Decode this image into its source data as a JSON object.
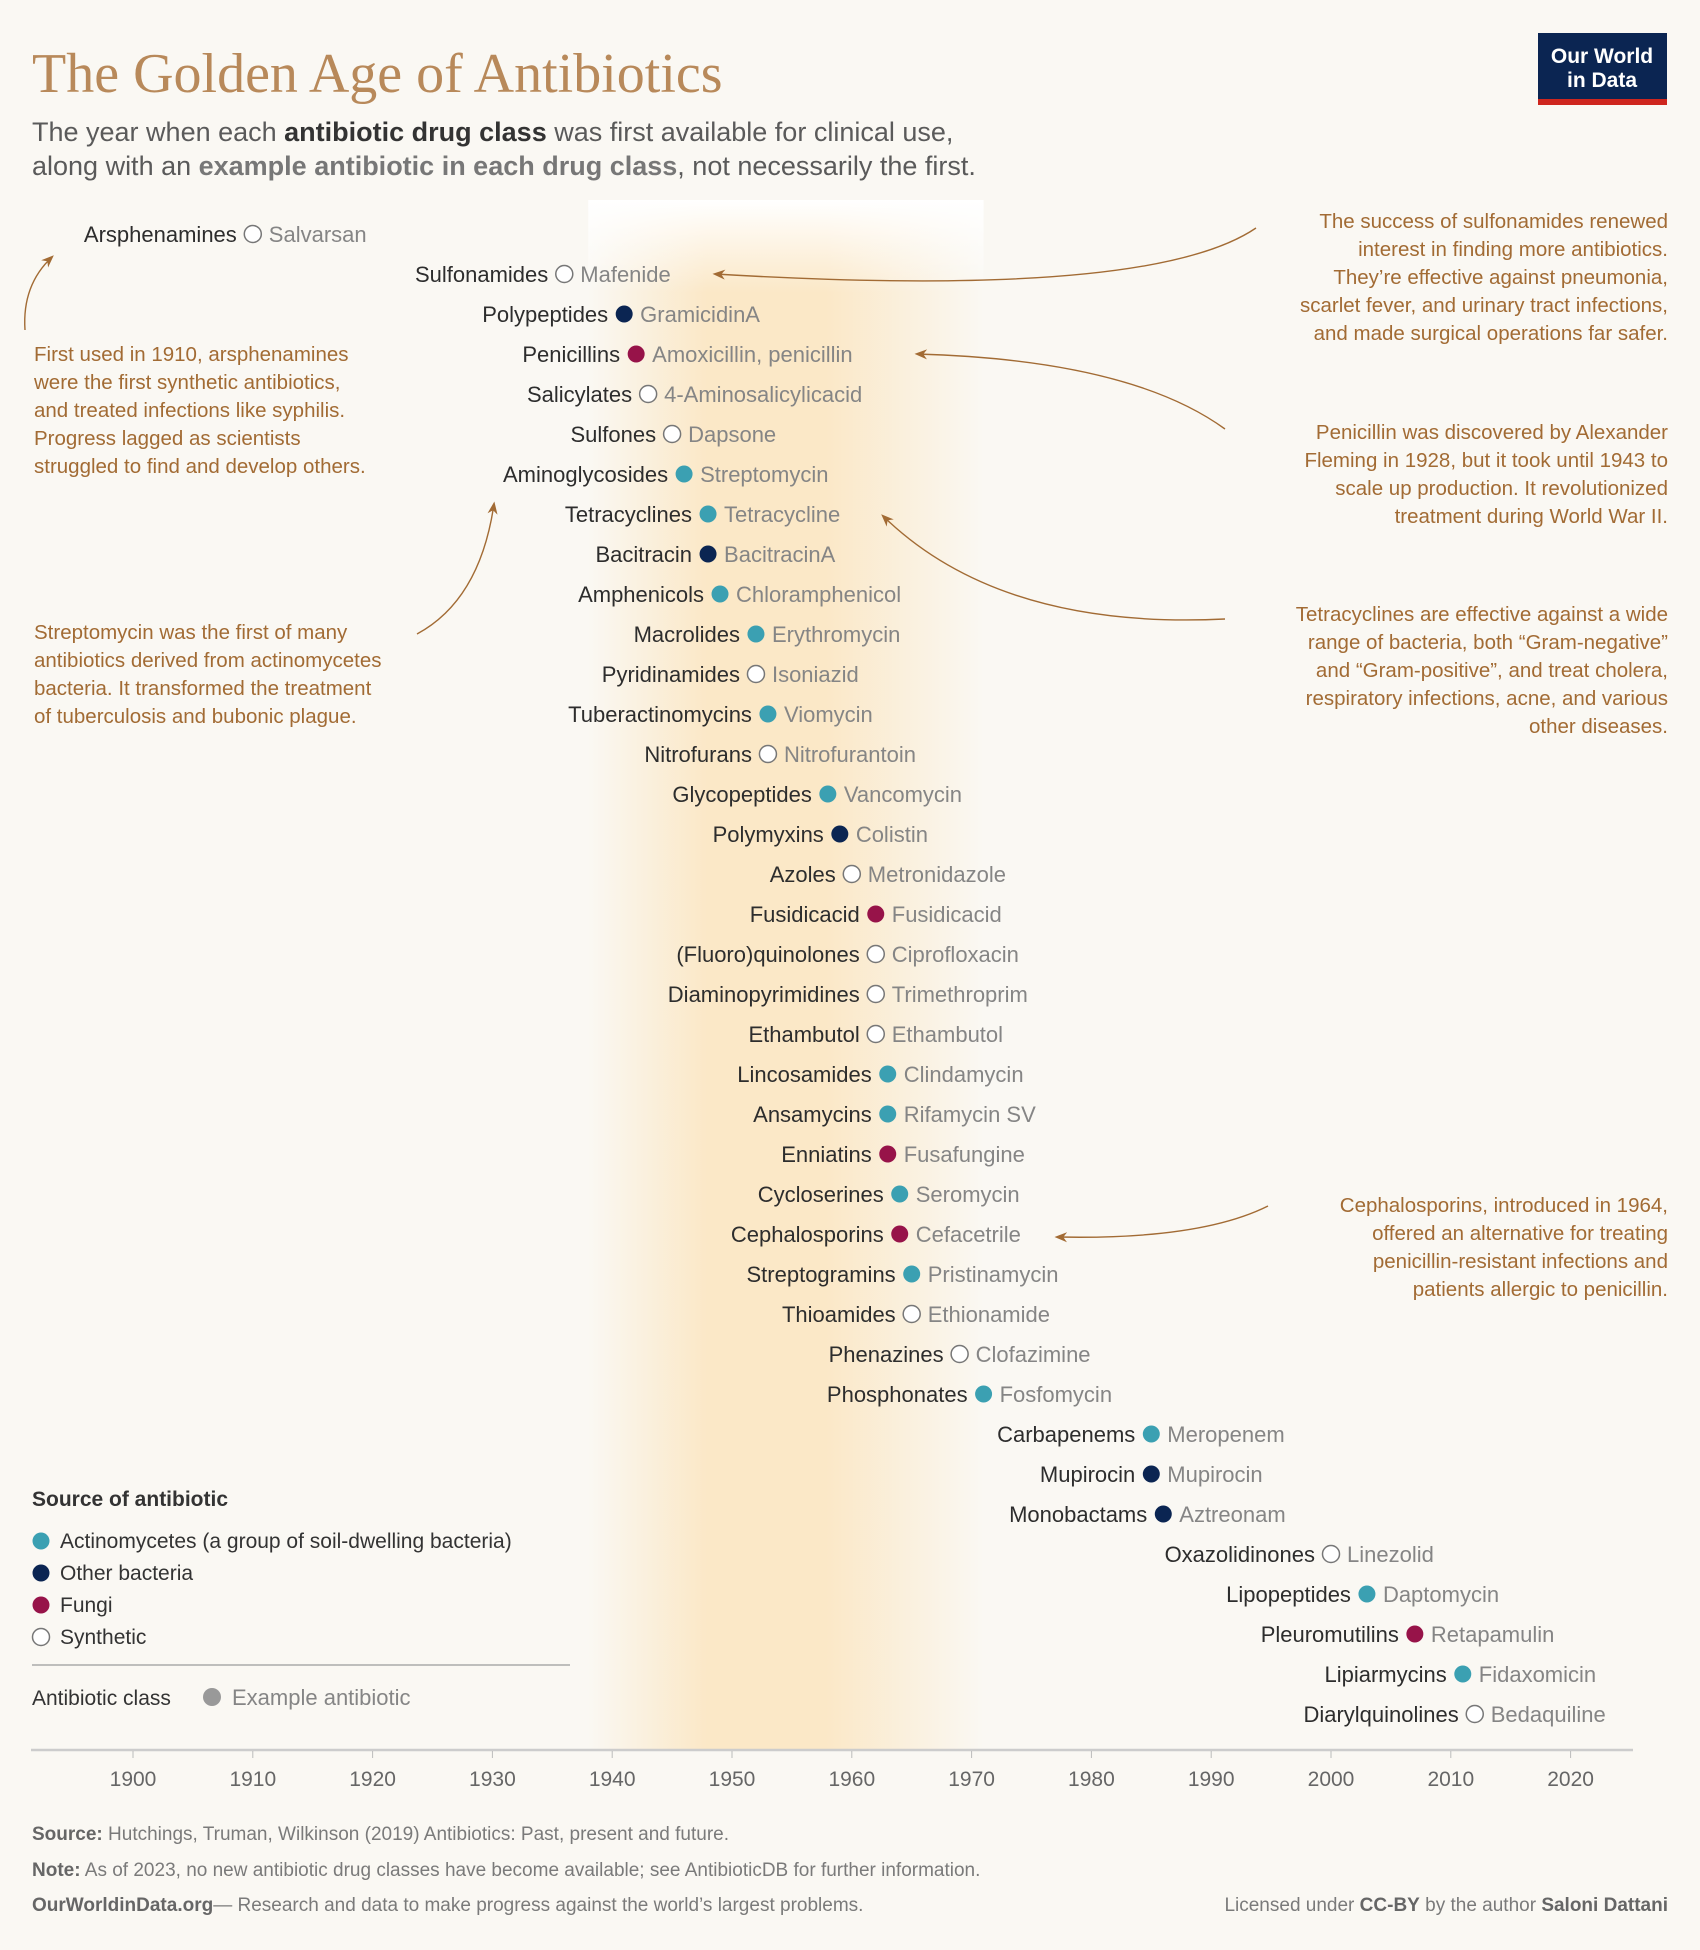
{
  "header": {
    "title": "The Golden Age of Antibiotics",
    "subtitle_line1": [
      "The year when each ",
      "antibiotic drug class",
      " was first available for clinical use,"
    ],
    "subtitle_line2": [
      "along with an ",
      "example antibiotic in each drug class",
      ", not necessarily the first."
    ],
    "logo_line1": "Our World",
    "logo_line2": "in Data"
  },
  "colors": {
    "actinomycetes": "#3ba0b2",
    "other_bacteria": "#0b2552",
    "fungi": "#971349",
    "synthetic": "#ffffff",
    "title": "#b8895a",
    "annotation": "#a26b34",
    "highlight_band": "#fbe6c2"
  },
  "chart_data": {
    "type": "scatter",
    "xlabel": "",
    "ylabel": "",
    "xlim": [
      1892,
      2026
    ],
    "x_ticks": [
      1900,
      1910,
      1920,
      1930,
      1940,
      1950,
      1960,
      1970,
      1980,
      1990,
      2000,
      2010,
      2020
    ],
    "highlight_range": [
      1938,
      1971
    ],
    "grid": false,
    "points": [
      {
        "class": "Arsphenamines",
        "example": "Salvarsan",
        "year": 1910,
        "source": "synthetic"
      },
      {
        "class": "Sulfonamides",
        "example": "Mafenide",
        "year": 1936,
        "source": "synthetic"
      },
      {
        "class": "Polypeptides",
        "example": "GramicidinA",
        "year": 1941,
        "source": "other_bacteria"
      },
      {
        "class": "Penicillins",
        "example": "Amoxicillin, penicillin",
        "year": 1942,
        "source": "fungi"
      },
      {
        "class": "Salicylates",
        "example": "4-Aminosalicylicacid",
        "year": 1943,
        "source": "synthetic"
      },
      {
        "class": "Sulfones",
        "example": "Dapsone",
        "year": 1945,
        "source": "synthetic"
      },
      {
        "class": "Aminoglycosides",
        "example": "Streptomycin",
        "year": 1946,
        "source": "actinomycetes"
      },
      {
        "class": "Tetracyclines",
        "example": "Tetracycline",
        "year": 1948,
        "source": "actinomycetes"
      },
      {
        "class": "Bacitracin",
        "example": "BacitracinA",
        "year": 1948,
        "source": "other_bacteria"
      },
      {
        "class": "Amphenicols",
        "example": "Chloramphenicol",
        "year": 1949,
        "source": "actinomycetes"
      },
      {
        "class": "Macrolides",
        "example": "Erythromycin",
        "year": 1952,
        "source": "actinomycetes"
      },
      {
        "class": "Pyridinamides",
        "example": "Isoniazid",
        "year": 1952,
        "source": "synthetic"
      },
      {
        "class": "Tuberactinomycins",
        "example": "Viomycin",
        "year": 1953,
        "source": "actinomycetes"
      },
      {
        "class": "Nitrofurans",
        "example": "Nitrofurantoin",
        "year": 1953,
        "source": "synthetic"
      },
      {
        "class": "Glycopeptides",
        "example": "Vancomycin",
        "year": 1958,
        "source": "actinomycetes"
      },
      {
        "class": "Polymyxins",
        "example": "Colistin",
        "year": 1959,
        "source": "other_bacteria"
      },
      {
        "class": "Azoles",
        "example": "Metronidazole",
        "year": 1960,
        "source": "synthetic"
      },
      {
        "class": "Fusidicacid",
        "example": "Fusidicacid",
        "year": 1962,
        "source": "fungi"
      },
      {
        "class": "(Fluoro)quinolones",
        "example": "Ciprofloxacin",
        "year": 1962,
        "source": "synthetic"
      },
      {
        "class": "Diaminopyrimidines",
        "example": "Trimethroprim",
        "year": 1962,
        "source": "synthetic"
      },
      {
        "class": "Ethambutol",
        "example": "Ethambutol",
        "year": 1962,
        "source": "synthetic"
      },
      {
        "class": "Lincosamides",
        "example": "Clindamycin",
        "year": 1963,
        "source": "actinomycetes"
      },
      {
        "class": "Ansamycins",
        "example": "Rifamycin SV",
        "year": 1963,
        "source": "actinomycetes"
      },
      {
        "class": "Enniatins",
        "example": "Fusafungine",
        "year": 1963,
        "source": "fungi"
      },
      {
        "class": "Cycloserines",
        "example": "Seromycin",
        "year": 1964,
        "source": "actinomycetes"
      },
      {
        "class": "Cephalosporins",
        "example": "Cefacetrile",
        "year": 1964,
        "source": "fungi"
      },
      {
        "class": "Streptogramins",
        "example": "Pristinamycin",
        "year": 1965,
        "source": "actinomycetes"
      },
      {
        "class": "Thioamides",
        "example": "Ethionamide",
        "year": 1965,
        "source": "synthetic"
      },
      {
        "class": "Phenazines",
        "example": "Clofazimine",
        "year": 1969,
        "source": "synthetic"
      },
      {
        "class": "Phosphonates",
        "example": "Fosfomycin",
        "year": 1971,
        "source": "actinomycetes"
      },
      {
        "class": "Carbapenems",
        "example": "Meropenem",
        "year": 1985,
        "source": "actinomycetes"
      },
      {
        "class": "Mupirocin",
        "example": "Mupirocin",
        "year": 1985,
        "source": "other_bacteria"
      },
      {
        "class": "Monobactams",
        "example": "Aztreonam",
        "year": 1986,
        "source": "other_bacteria"
      },
      {
        "class": "Oxazolidinones",
        "example": "Linezolid",
        "year": 2000,
        "source": "synthetic"
      },
      {
        "class": "Lipopeptides",
        "example": "Daptomycin",
        "year": 2003,
        "source": "actinomycetes"
      },
      {
        "class": "Pleuromutilins",
        "example": "Retapamulin",
        "year": 2007,
        "source": "fungi"
      },
      {
        "class": "Lipiarmycins",
        "example": "Fidaxomicin",
        "year": 2011,
        "source": "actinomycetes"
      },
      {
        "class": "Diarylquinolines",
        "example": "Bedaquiline",
        "year": 2012,
        "source": "synthetic"
      }
    ],
    "annotations": [
      {
        "target": "Arsphenamines",
        "lines": [
          "First used in 1910, arsphenamines",
          "were the first synthetic antibiotics,",
          "and treated infections like syphilis.",
          "Progress lagged as scientists",
          "struggled to find and develop others."
        ]
      },
      {
        "target": "Aminoglycosides",
        "lines": [
          "Streptomycin was the first of many",
          "antibiotics derived from actinomycetes",
          "bacteria. It transformed the treatment",
          "of tuberculosis and bubonic plague."
        ]
      },
      {
        "target": "Sulfonamides",
        "lines": [
          "The success of sulfonamides renewed",
          "interest in finding more antibiotics.",
          "They’re effective against pneumonia,",
          "scarlet fever, and urinary tract infections,",
          "and made surgical operations far safer."
        ]
      },
      {
        "target": "Penicillins",
        "lines": [
          "Penicillin was discovered by Alexander",
          "Fleming in 1928, but it took until 1943 to",
          "scale up production. It revolutionized",
          "treatment during World War II."
        ]
      },
      {
        "target": "Tetracyclines",
        "lines": [
          "Tetracyclines are effective against a wide",
          "range of bacteria, both “Gram-negative”",
          "and “Gram-positive”, and treat cholera,",
          "respiratory infections, acne, and various",
          "other diseases."
        ]
      },
      {
        "target": "Cephalosporins",
        "lines": [
          "Cephalosporins, introduced in 1964,",
          "offered an alternative for treating",
          "penicillin-resistant infections and",
          "patients allergic to penicillin."
        ]
      }
    ]
  },
  "legend": {
    "title": "Source of antibiotic",
    "items": [
      {
        "key": "actinomycetes",
        "label": "Actinomycetes (a group of soil-dwelling bacteria)"
      },
      {
        "key": "other_bacteria",
        "label": "Other bacteria"
      },
      {
        "key": "fungi",
        "label": "Fungi"
      },
      {
        "key": "synthetic",
        "label": "Synthetic"
      }
    ],
    "key_class": "Antibiotic class",
    "key_example": "Example antibiotic"
  },
  "footer": {
    "source_label": "Source:",
    "source_text": " Hutchings, Truman, Wilkinson (2019) Antibiotics: Past, present and future.",
    "note_label": "Note:",
    "note_text": " As of 2023, no new antibiotic drug classes have become available; see AntibioticDB for further information.",
    "site": "OurWorldinData.org",
    "tagline": "— Research and data to make progress against the world’s largest problems.",
    "license_pre": "Licensed under ",
    "license": "CC-BY",
    "license_mid": " by the author ",
    "author": "Saloni Dattani"
  }
}
